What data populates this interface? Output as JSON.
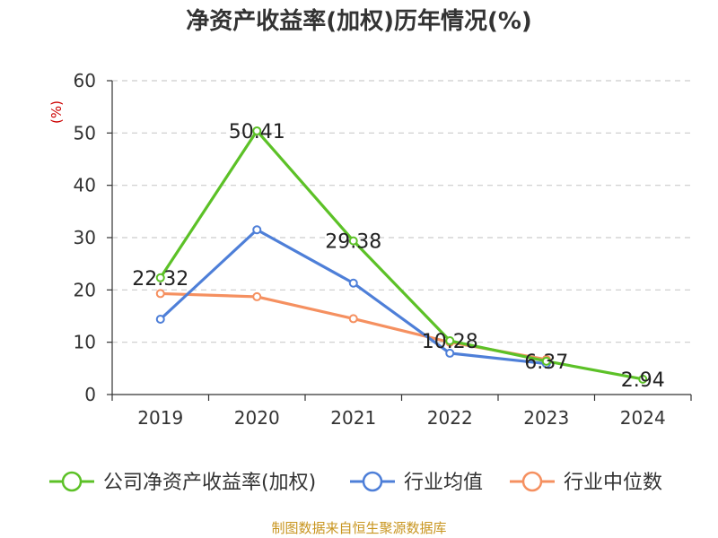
{
  "chart_data": {
    "type": "line",
    "title": "净资产收益率(加权)历年情况(%)",
    "unit_label": "(%)",
    "xlabel": "",
    "ylabel": "",
    "categories": [
      "2019",
      "2020",
      "2021",
      "2022",
      "2023",
      "2024"
    ],
    "ylim": [
      0,
      60
    ],
    "yticks": [
      0,
      10,
      20,
      30,
      40,
      50,
      60
    ],
    "grid": true,
    "legend_position": "bottom",
    "series": [
      {
        "name": "公司净资产收益率(加权)",
        "color": "#5cc127",
        "values": [
          22.32,
          50.41,
          29.38,
          10.28,
          6.37,
          2.94
        ],
        "labels": [
          "22.32",
          "50.41",
          "29.38",
          "10.28",
          "6.37",
          "2.94"
        ]
      },
      {
        "name": "行业均值",
        "color": "#4e7fd8",
        "values": [
          14.4,
          31.5,
          21.3,
          7.9,
          5.9,
          null
        ]
      },
      {
        "name": "行业中位数",
        "color": "#f59060",
        "values": [
          19.3,
          18.7,
          14.5,
          10.0,
          6.7,
          null
        ]
      }
    ]
  },
  "source_text": "制图数据来自恒生聚源数据库"
}
